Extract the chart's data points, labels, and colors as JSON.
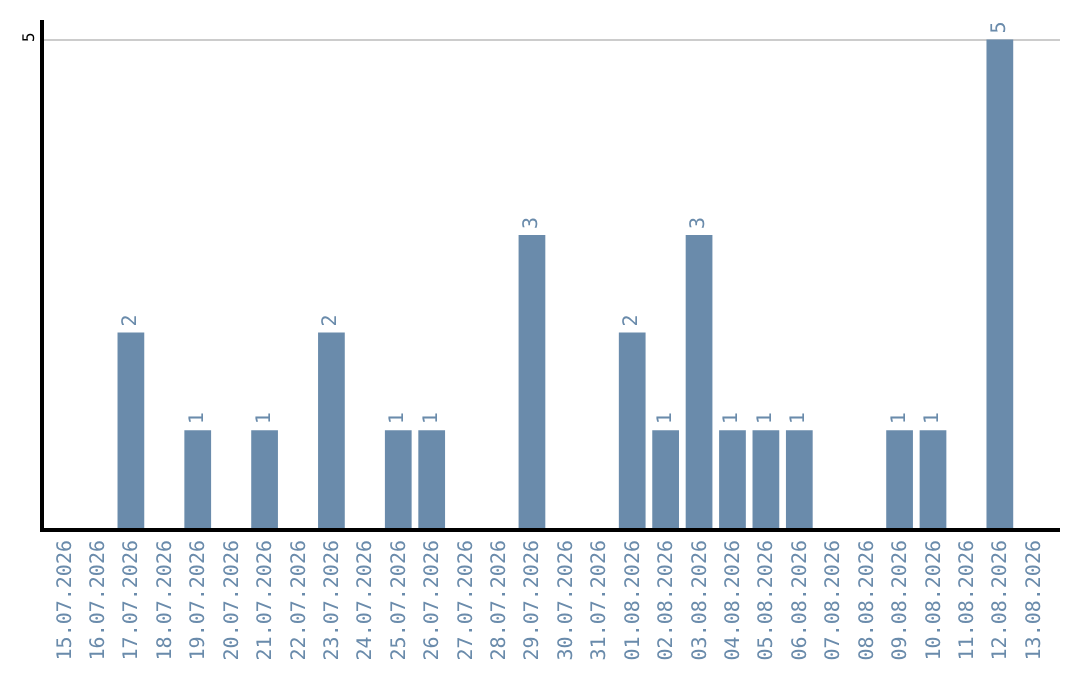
{
  "chart_data": {
    "type": "bar",
    "categories": [
      "15.07.2026",
      "16.07.2026",
      "17.07.2026",
      "18.07.2026",
      "19.07.2026",
      "20.07.2026",
      "21.07.2026",
      "22.07.2026",
      "23.07.2026",
      "24.07.2026",
      "25.07.2026",
      "26.07.2026",
      "27.07.2026",
      "28.07.2026",
      "29.07.2026",
      "30.07.2026",
      "31.07.2026",
      "01.08.2026",
      "02.08.2026",
      "03.08.2026",
      "04.08.2026",
      "05.08.2026",
      "06.08.2026",
      "07.08.2026",
      "08.08.2026",
      "09.08.2026",
      "10.08.2026",
      "11.08.2026",
      "12.08.2026",
      "13.08.2026"
    ],
    "values": [
      0,
      0,
      2,
      0,
      1,
      0,
      1,
      0,
      2,
      0,
      1,
      1,
      0,
      0,
      3,
      0,
      0,
      2,
      1,
      3,
      1,
      1,
      1,
      0,
      0,
      1,
      1,
      0,
      5,
      0
    ],
    "value_labels": [
      null,
      null,
      "2",
      null,
      "1",
      null,
      "1",
      null,
      "2",
      null,
      "1",
      "1",
      null,
      null,
      "3",
      null,
      null,
      "2",
      "1",
      "3",
      "1",
      "1",
      "1",
      null,
      null,
      "1",
      "1",
      null,
      "5",
      null
    ],
    "color": "#6a8bab",
    "ylim": [
      0,
      5.2
    ],
    "yticks": [
      5
    ],
    "grid": "y",
    "legend": false
  }
}
